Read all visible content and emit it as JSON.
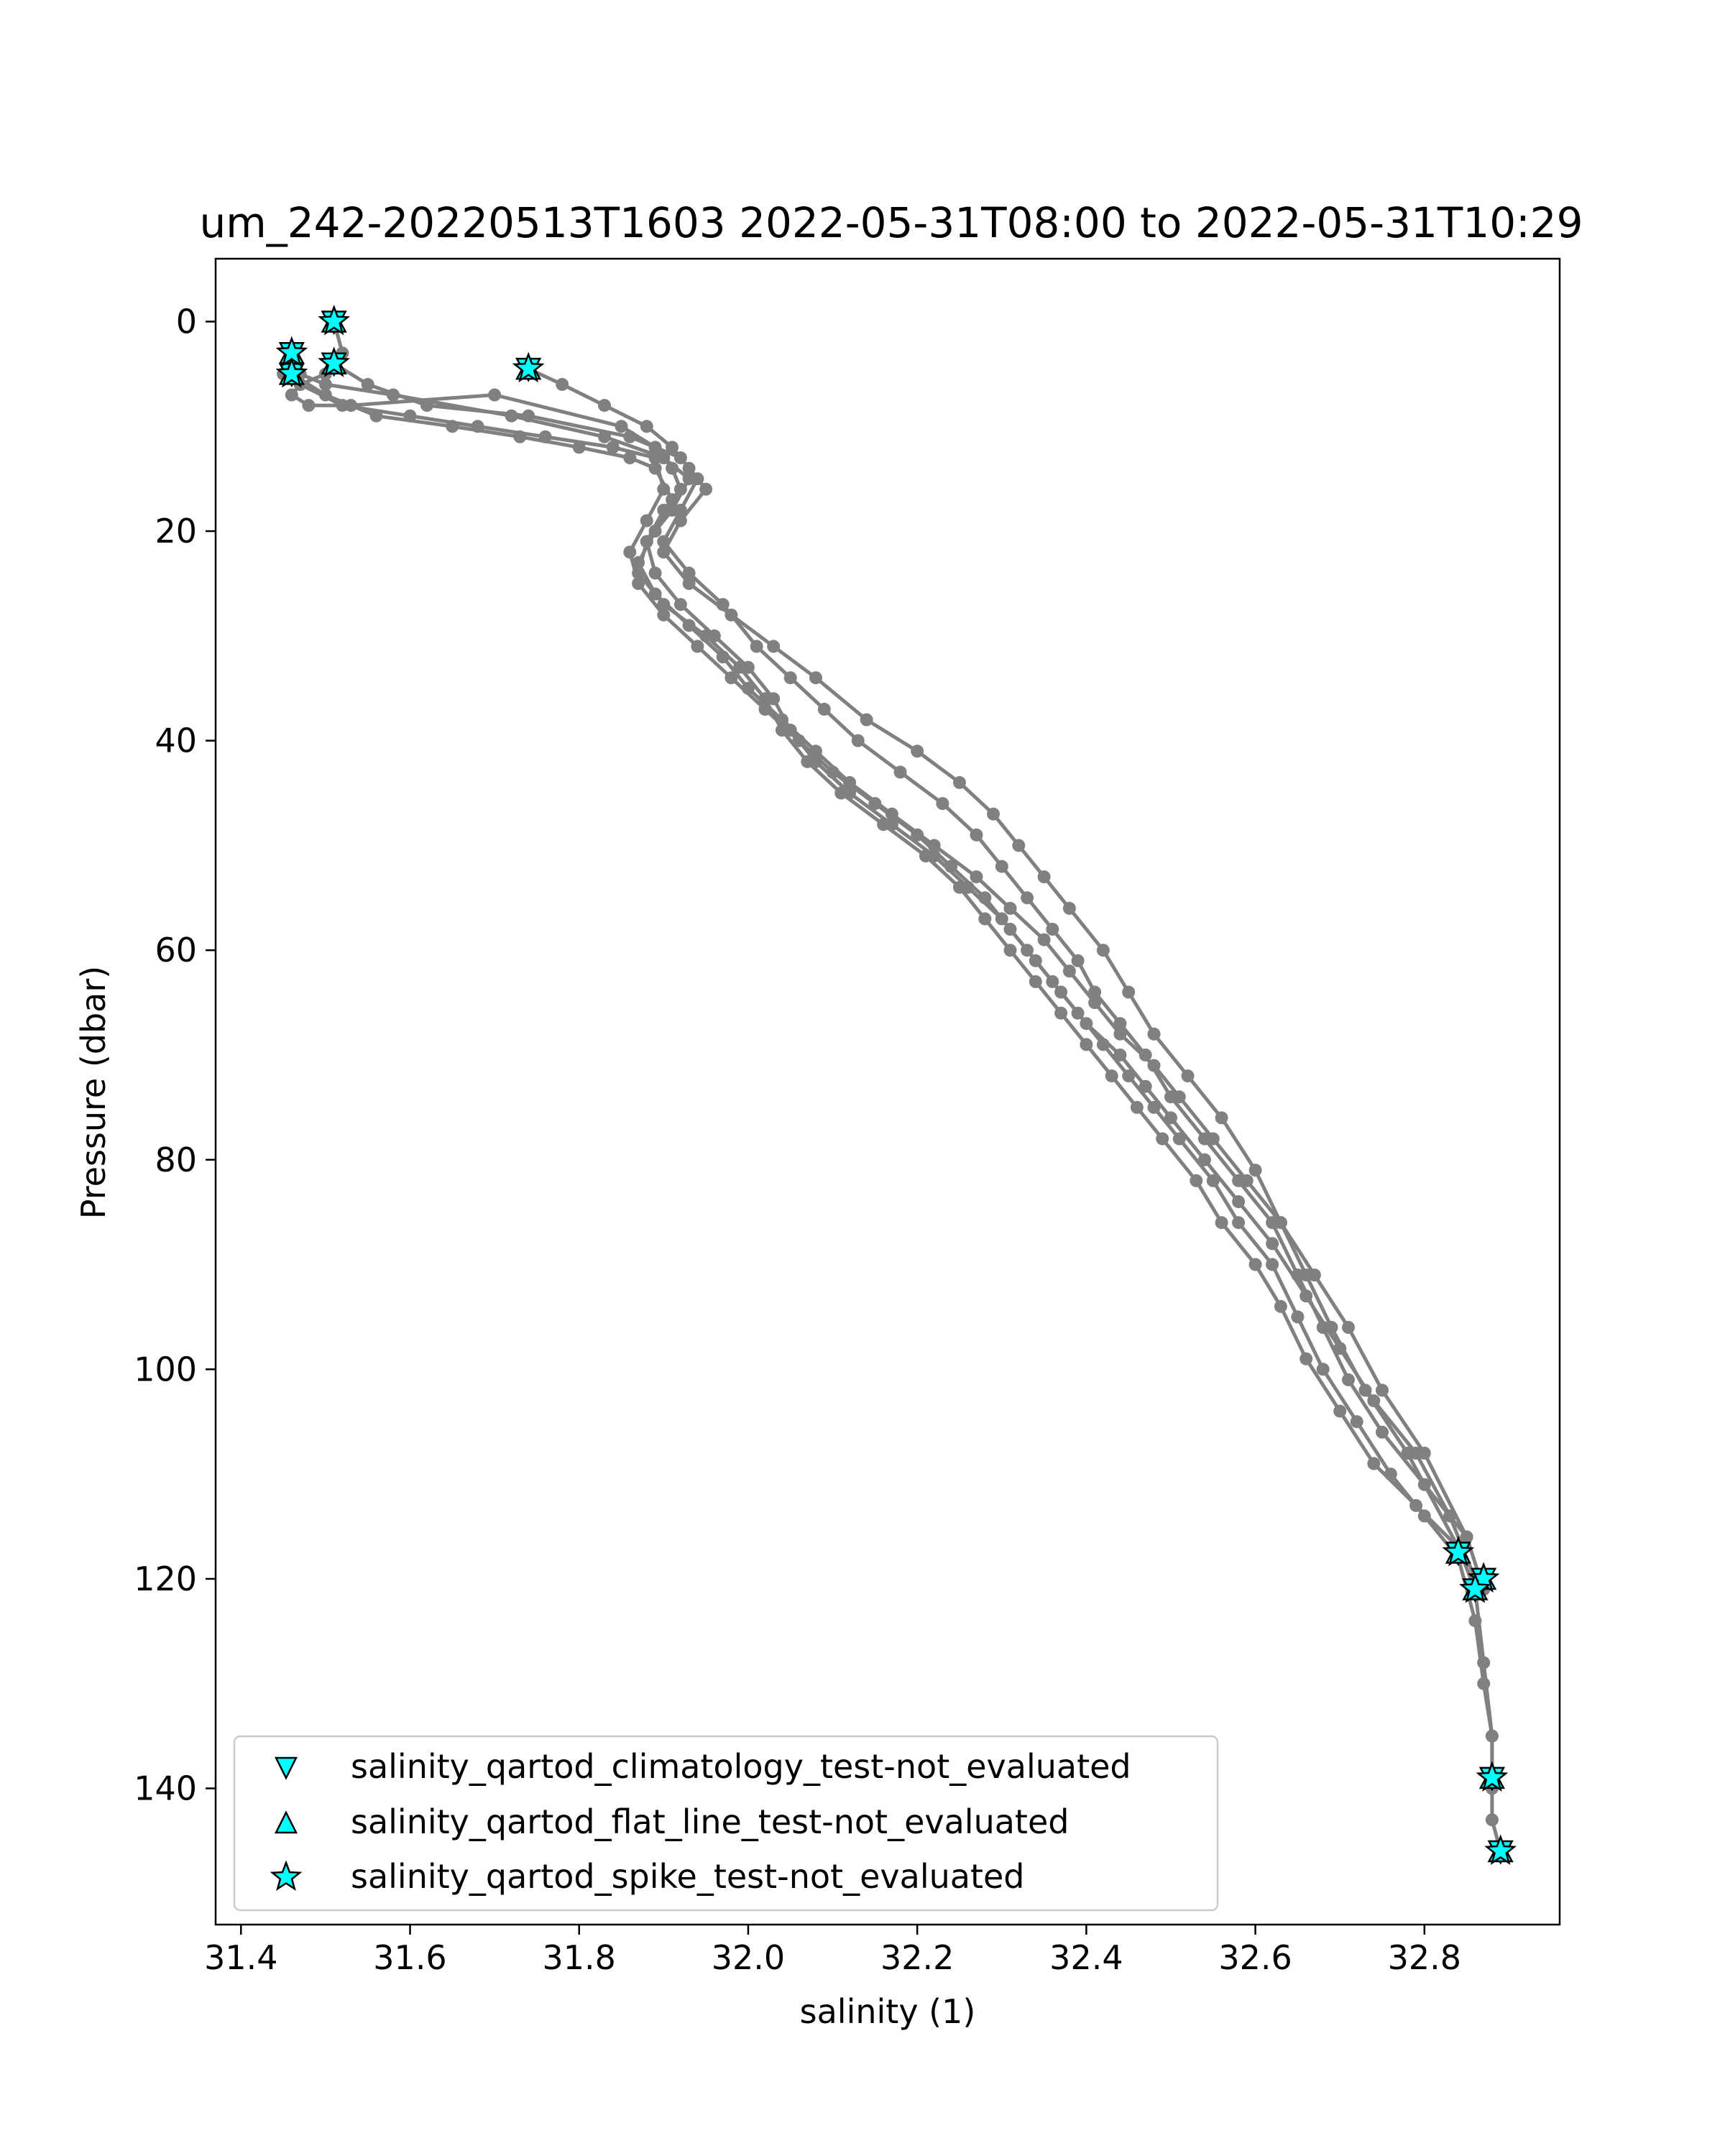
{
  "chart_data": {
    "type": "line",
    "title": "um_242-20220513T1603 2022-05-31T08:00 to 2022-05-31T10:29",
    "xlabel": "salinity (1)",
    "ylabel": "Pressure (dbar)",
    "xlim": [
      31.37,
      32.96
    ],
    "ylim": [
      153,
      -6
    ],
    "y_inverted": true,
    "grid": false,
    "xticks": [
      31.4,
      31.6,
      31.8,
      32.0,
      32.2,
      32.4,
      32.6,
      32.8
    ],
    "xtick_labels": [
      "31.4",
      "31.6",
      "31.8",
      "32.0",
      "32.2",
      "32.4",
      "32.6",
      "32.8"
    ],
    "yticks": [
      0,
      20,
      40,
      60,
      80,
      100,
      120,
      140
    ],
    "ytick_labels": [
      "0",
      "20",
      "40",
      "60",
      "80",
      "100",
      "120",
      "140"
    ],
    "line_color": "#808080",
    "marker_color": "#00ffff",
    "series": [
      {
        "x": [
          31.51,
          31.52,
          31.5,
          31.47,
          31.46,
          31.48,
          31.53,
          31.7,
          31.85,
          31.89,
          31.91,
          31.92,
          31.9,
          31.88,
          31.89,
          31.92,
          31.96,
          32.0,
          32.03,
          32.05,
          32.08,
          32.12,
          32.17,
          32.22,
          32.26,
          32.3,
          32.33,
          32.36,
          32.39,
          32.42,
          32.45,
          32.48,
          32.51,
          32.55,
          32.58,
          32.62,
          32.65,
          32.68,
          32.72,
          32.76,
          32.8,
          32.84,
          32.86,
          32.87,
          32.88,
          32.88,
          32.88,
          32.89
        ],
        "y": [
          0,
          3,
          5,
          6,
          7,
          8,
          8,
          7,
          10,
          12,
          14,
          16,
          18,
          21,
          24,
          27,
          30,
          33,
          36,
          39,
          42,
          45,
          48,
          51,
          54,
          57,
          60,
          63,
          66,
          69,
          72,
          75,
          78,
          82,
          86,
          90,
          95,
          100,
          105,
          110,
          114,
          118,
          124,
          130,
          135,
          140,
          143,
          146
        ]
      },
      {
        "x": [
          31.46,
          31.47,
          31.5,
          31.58,
          31.72,
          31.83,
          31.9,
          31.93,
          31.91,
          31.88,
          31.87,
          31.9,
          31.95,
          31.99,
          32.02,
          32.04,
          32.07,
          32.11,
          32.16,
          32.21,
          32.25,
          32.28,
          32.31,
          32.34,
          32.37,
          32.4,
          32.43,
          32.46,
          32.49,
          32.53,
          32.56,
          32.6,
          32.63,
          32.66,
          32.7,
          32.74,
          32.79,
          32.84,
          32.86,
          32.87,
          32.88,
          32.88
        ],
        "y": [
          3,
          5,
          6,
          7,
          9,
          11,
          13,
          15,
          18,
          21,
          24,
          27,
          30,
          33,
          36,
          39,
          42,
          45,
          48,
          51,
          54,
          57,
          60,
          63,
          66,
          69,
          72,
          75,
          78,
          82,
          86,
          90,
          94,
          99,
          104,
          109,
          113,
          117,
          121,
          128,
          135,
          139
        ]
      },
      {
        "x": [
          31.51,
          31.55,
          31.62,
          31.74,
          31.86,
          31.92,
          31.94,
          31.92,
          31.9,
          31.93,
          31.97,
          32.01,
          32.05,
          32.09,
          32.13,
          32.18,
          32.23,
          32.27,
          32.3,
          32.33,
          32.36,
          32.39,
          32.41,
          32.44,
          32.47,
          32.5,
          32.54,
          32.58,
          32.62,
          32.65,
          32.68,
          32.71,
          32.75,
          32.8,
          32.85,
          32.87
        ],
        "y": [
          4,
          6,
          8,
          9,
          11,
          13,
          15,
          18,
          21,
          24,
          27,
          31,
          34,
          37,
          40,
          43,
          46,
          49,
          52,
          55,
          58,
          61,
          64,
          67,
          70,
          74,
          78,
          82,
          86,
          91,
          96,
          101,
          106,
          111,
          116,
          121
        ]
      },
      {
        "x": [
          31.74,
          31.78,
          31.83,
          31.88,
          31.91,
          31.93,
          31.95,
          31.92,
          31.9,
          31.93,
          31.98,
          32.03,
          32.08,
          32.14,
          32.2,
          32.25,
          32.29,
          32.32,
          32.35,
          32.38,
          32.42,
          32.45,
          32.48,
          32.52,
          32.56,
          32.6,
          32.63,
          32.66,
          32.69,
          32.73,
          32.78,
          32.84
        ],
        "y": [
          4.5,
          6,
          8,
          10,
          12,
          14,
          16,
          19,
          22,
          25,
          28,
          31,
          34,
          38,
          41,
          44,
          47,
          50,
          53,
          56,
          60,
          64,
          68,
          72,
          76,
          81,
          86,
          91,
          96,
          102,
          108,
          117
        ]
      },
      {
        "x": [
          31.45,
          31.47,
          31.52,
          31.6,
          31.68,
          31.76,
          31.84,
          31.89,
          31.9,
          31.88,
          31.86,
          31.87,
          31.9,
          31.94,
          31.98,
          32.02,
          32.06,
          32.1,
          32.15,
          32.2,
          32.24,
          32.28,
          32.31,
          32.34,
          32.37,
          32.4,
          32.44,
          32.47,
          32.5,
          32.54,
          32.58,
          32.62,
          32.66,
          32.7,
          32.74,
          32.79,
          32.83,
          32.86
        ],
        "y": [
          5,
          6,
          8,
          9,
          10,
          11,
          12,
          13,
          16,
          19,
          22,
          25,
          28,
          31,
          34,
          37,
          40,
          43,
          46,
          49,
          52,
          55,
          58,
          61,
          64,
          67,
          70,
          73,
          76,
          80,
          84,
          88,
          93,
          98,
          103,
          108,
          114,
          120
        ]
      },
      {
        "x": [
          31.46,
          31.5,
          31.56,
          31.65,
          31.73,
          31.8,
          31.86,
          31.89,
          31.91,
          31.89,
          31.87,
          31.89,
          31.93,
          31.97,
          32.0,
          32.04,
          32.08,
          32.12,
          32.17,
          32.22,
          32.27,
          32.31,
          32.35,
          32.38,
          32.41,
          32.44,
          32.48,
          32.51,
          32.55,
          32.59,
          32.63,
          32.67,
          32.71,
          32.75,
          32.8,
          32.85
        ],
        "y": [
          5,
          7,
          9,
          10,
          11,
          12,
          13,
          14,
          17,
          20,
          23,
          26,
          29,
          32,
          35,
          38,
          41,
          44,
          47,
          50,
          53,
          56,
          59,
          62,
          65,
          68,
          71,
          74,
          78,
          82,
          86,
          91,
          96,
          102,
          108,
          116
        ]
      }
    ],
    "flag_markers": {
      "spike": {
        "x": [
          31.51,
          31.46,
          31.51,
          31.74,
          31.46,
          32.84,
          32.87,
          32.86,
          32.88,
          32.89
        ],
        "y": [
          0,
          3,
          4,
          4.5,
          5,
          117.5,
          120,
          121,
          139,
          146
        ]
      },
      "flat_line": {
        "x": [
          31.51,
          31.46,
          31.51,
          31.74,
          31.46,
          32.84,
          32.87,
          32.86,
          32.88,
          32.89
        ],
        "y": [
          0,
          3,
          4,
          4.5,
          5,
          117.5,
          120,
          121,
          139,
          146
        ]
      },
      "climatology": {
        "x": [
          31.51,
          31.46,
          31.51,
          31.74,
          31.46,
          32.84,
          32.87,
          32.86,
          32.88,
          32.89
        ],
        "y": [
          0,
          3,
          4,
          4.5,
          5,
          117.5,
          120,
          121,
          139,
          146
        ]
      }
    },
    "legend": {
      "placement": "lower-left",
      "entries": [
        {
          "label": "salinity_qartod_climatology_test-not_evaluated",
          "marker": "triangle-down-icon"
        },
        {
          "label": "salinity_qartod_flat_line_test-not_evaluated",
          "marker": "triangle-up-icon"
        },
        {
          "label": "salinity_qartod_spike_test-not_evaluated",
          "marker": "star-icon"
        }
      ]
    }
  }
}
